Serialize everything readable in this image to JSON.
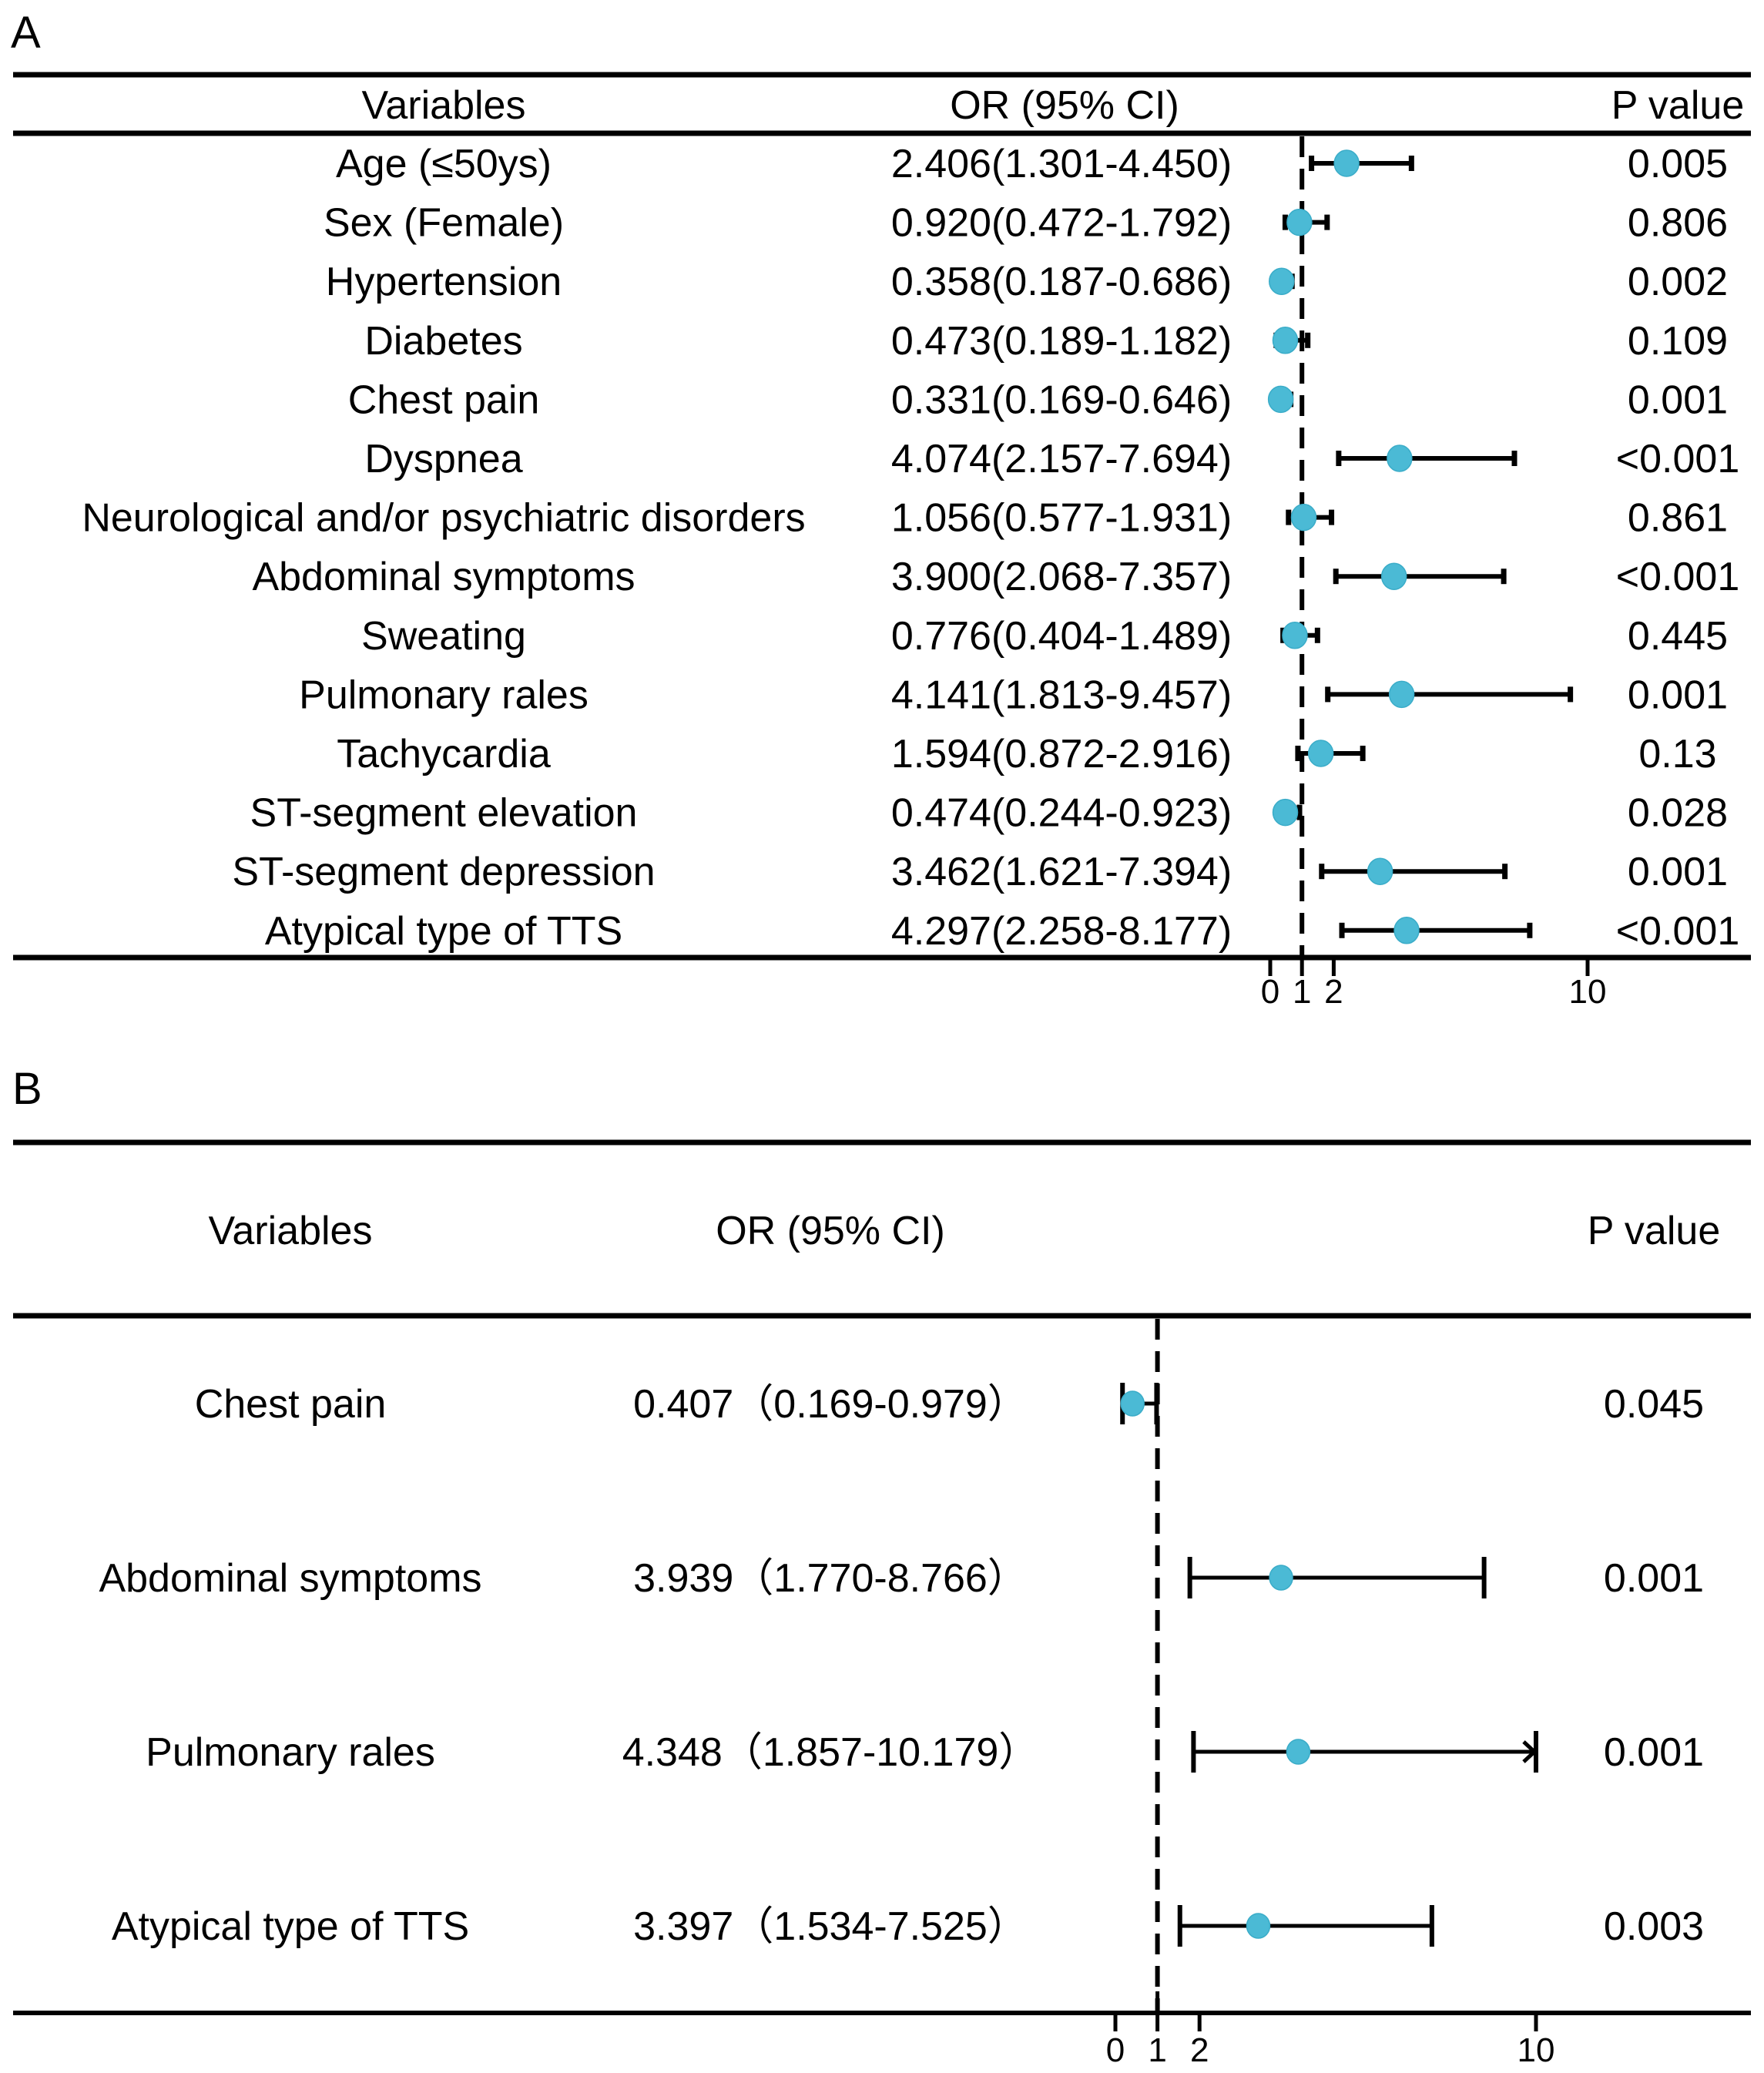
{
  "colors": {
    "point": "#4BBAD5",
    "point_edge": "#3AACC8",
    "line": "#000000"
  },
  "chart_data": [
    {
      "panel": "A",
      "type": "forest",
      "columns": {
        "variables": "Variables",
        "or_ci": "OR (95% CI)",
        "p_value": "P value"
      },
      "reference_line": 1,
      "xaxis": {
        "scale": "linear",
        "ticks": [
          0,
          1,
          2,
          10
        ],
        "tick_labels": [
          "0",
          "1",
          "2",
          "10"
        ],
        "range": [
          0,
          14
        ]
      },
      "rows": [
        {
          "variable": "Age (≤50ys)",
          "or": 2.406,
          "lower": 1.301,
          "upper": 4.45,
          "or_ci_text": "2.406(1.301-4.450)",
          "p": "0.005"
        },
        {
          "variable": "Sex (Female)",
          "or": 0.92,
          "lower": 0.472,
          "upper": 1.792,
          "or_ci_text": "0.920(0.472-1.792)",
          "p": "0.806"
        },
        {
          "variable": "Hypertension",
          "or": 0.358,
          "lower": 0.187,
          "upper": 0.686,
          "or_ci_text": "0.358(0.187-0.686)",
          "p": "0.002"
        },
        {
          "variable": "Diabetes",
          "or": 0.473,
          "lower": 0.189,
          "upper": 1.182,
          "or_ci_text": "0.473(0.189-1.182)",
          "p": "0.109"
        },
        {
          "variable": "Chest pain",
          "or": 0.331,
          "lower": 0.169,
          "upper": 0.646,
          "or_ci_text": "0.331(0.169-0.646)",
          "p": "0.001"
        },
        {
          "variable": "Dyspnea",
          "or": 4.074,
          "lower": 2.157,
          "upper": 7.694,
          "or_ci_text": "4.074(2.157-7.694)",
          "p": "<0.001"
        },
        {
          "variable": "Neurological and/or psychiatric disorders",
          "or": 1.056,
          "lower": 0.577,
          "upper": 1.931,
          "or_ci_text": "1.056(0.577-1.931)",
          "p": "0.861"
        },
        {
          "variable": "Abdominal symptoms",
          "or": 3.9,
          "lower": 2.068,
          "upper": 7.357,
          "or_ci_text": "3.900(2.068-7.357)",
          "p": "<0.001"
        },
        {
          "variable": "Sweating",
          "or": 0.776,
          "lower": 0.404,
          "upper": 1.489,
          "or_ci_text": "0.776(0.404-1.489)",
          "p": "0.445"
        },
        {
          "variable": "Pulmonary rales",
          "or": 4.141,
          "lower": 1.813,
          "upper": 9.457,
          "or_ci_text": "4.141(1.813-9.457)",
          "p": "0.001"
        },
        {
          "variable": "Tachycardia",
          "or": 1.594,
          "lower": 0.872,
          "upper": 2.916,
          "or_ci_text": "1.594(0.872-2.916)",
          "p": "0.13"
        },
        {
          "variable": "ST-segment elevation",
          "or": 0.474,
          "lower": 0.244,
          "upper": 0.923,
          "or_ci_text": "0.474(0.244-0.923)",
          "p": "0.028"
        },
        {
          "variable": "ST-segment depression",
          "or": 3.462,
          "lower": 1.621,
          "upper": 7.394,
          "or_ci_text": "3.462(1.621-7.394)",
          "p": "0.001"
        },
        {
          "variable": "Atypical type of TTS",
          "or": 4.297,
          "lower": 2.258,
          "upper": 8.177,
          "or_ci_text": "4.297(2.258-8.177)",
          "p": "<0.001"
        }
      ]
    },
    {
      "panel": "B",
      "type": "forest",
      "columns": {
        "variables": "Variables",
        "or_ci": "OR (95% CI)",
        "p_value": "P value"
      },
      "reference_line": 1,
      "xaxis": {
        "scale": "linear",
        "ticks": [
          0,
          1,
          2,
          10
        ],
        "tick_labels": [
          "0",
          "1",
          "2",
          "10"
        ],
        "range": [
          0,
          14
        ],
        "clip_upper": 10
      },
      "rows": [
        {
          "variable": "Chest pain",
          "or": 0.407,
          "lower": 0.169,
          "upper": 0.979,
          "or_ci_text": "0.407（0.169-0.979）",
          "p": "0.045"
        },
        {
          "variable": "Abdominal symptoms",
          "or": 3.939,
          "lower": 1.77,
          "upper": 8.766,
          "or_ci_text": "3.939（1.770-8.766）",
          "p": "0.001"
        },
        {
          "variable": "Pulmonary rales",
          "or": 4.348,
          "lower": 1.857,
          "upper": 10.179,
          "or_ci_text": "4.348（1.857-10.179）",
          "p": "0.001",
          "upper_truncated": true
        },
        {
          "variable": "Atypical type of TTS",
          "or": 3.397,
          "lower": 1.534,
          "upper": 7.525,
          "or_ci_text": "3.397（1.534-7.525）",
          "p": "0.003"
        }
      ]
    }
  ]
}
